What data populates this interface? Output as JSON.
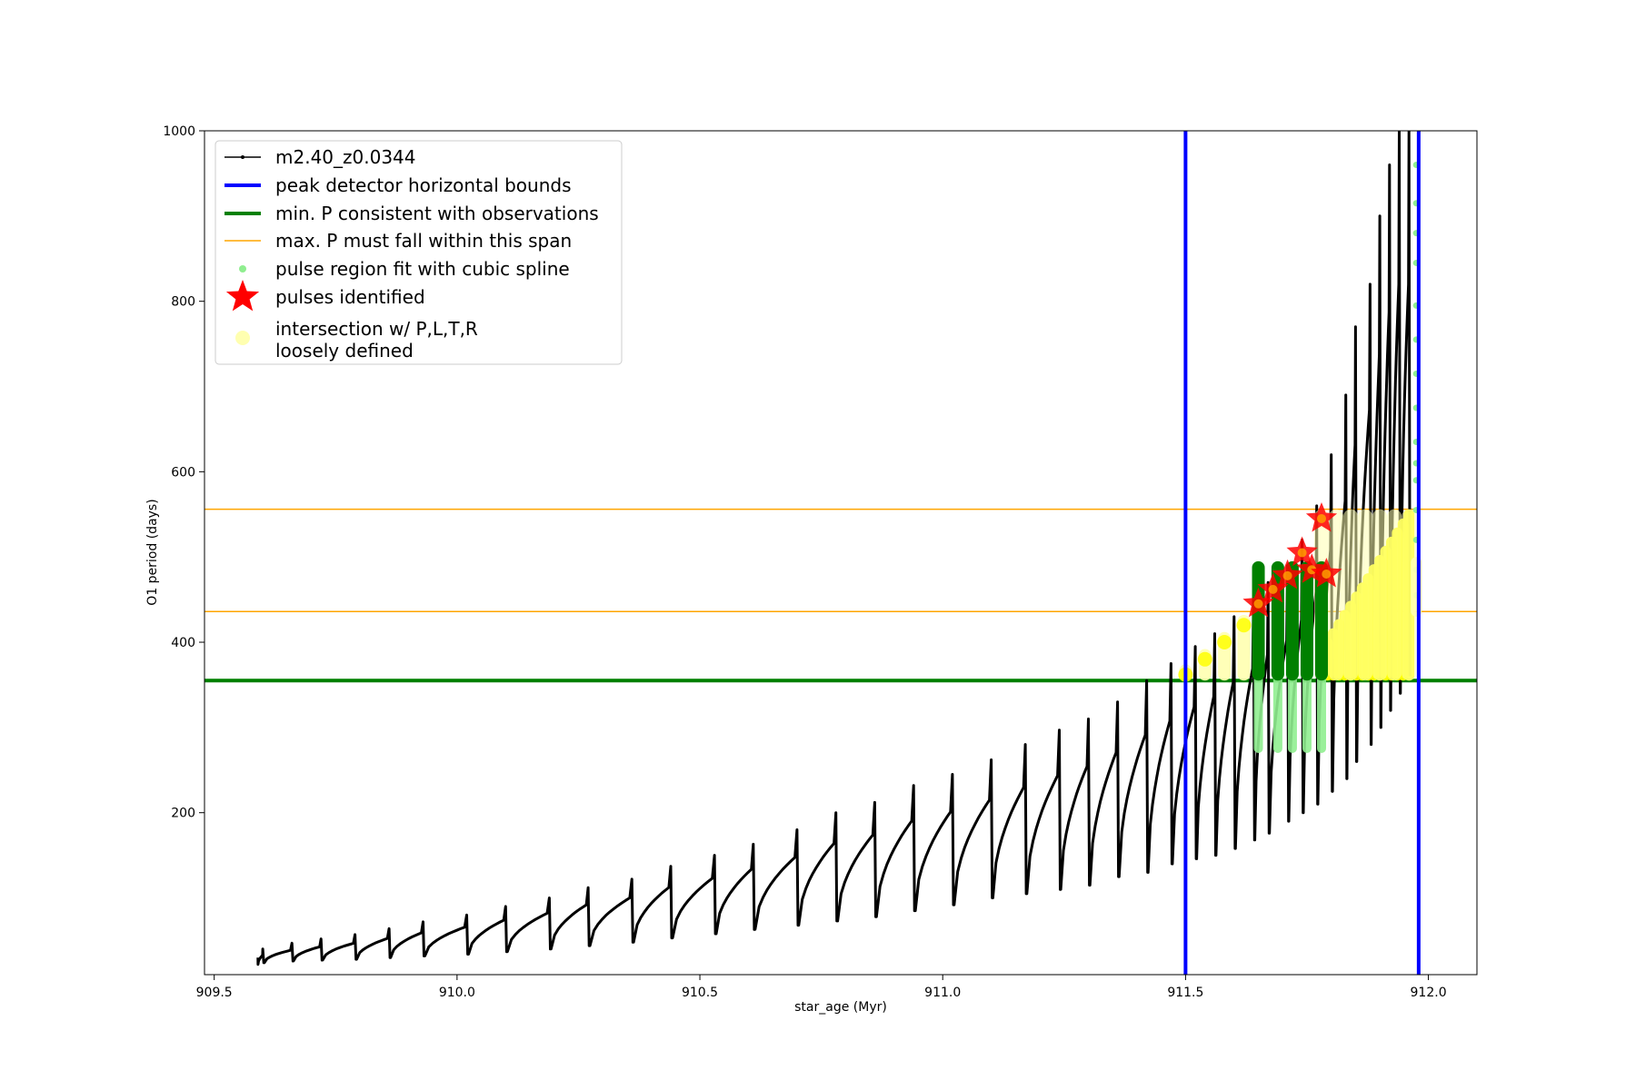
{
  "chart_data": {
    "type": "line",
    "title": "",
    "xlabel": "star_age (Myr)",
    "ylabel": "O1 period (days)",
    "xlim": [
      909.48,
      912.1
    ],
    "ylim": [
      10,
      1000
    ],
    "grid": false,
    "legend_placement": "top-left",
    "x_ticks": [
      909.5,
      910.0,
      910.5,
      911.0,
      911.5,
      912.0
    ],
    "x_tick_labels": [
      "909.5",
      "910.0",
      "910.5",
      "911.0",
      "911.5",
      "912.0"
    ],
    "y_ticks": [
      200,
      400,
      600,
      800,
      1000
    ],
    "y_tick_labels": [
      "200",
      "400",
      "600",
      "800",
      "1000"
    ],
    "colors": {
      "track": "#000000",
      "bounds": "#0000ff",
      "min_p": "#008000",
      "max_p": "#ffa500",
      "spline": "#90ee90",
      "pulses": "#ff0000",
      "intersection": "#ffff00",
      "intersection_loose": "#ffffb0",
      "pulse_segments": "#008000"
    },
    "legend": [
      {
        "label": "m2.40_z0.0344",
        "kind": "line-dot"
      },
      {
        "label": "peak detector horizontal bounds",
        "kind": "thick-blue"
      },
      {
        "label": "min. P consistent with observations",
        "kind": "thick-green"
      },
      {
        "label": "max. P must fall within this span",
        "kind": "thin-orange"
      },
      {
        "label": "pulse region fit with cubic spline",
        "kind": "green-dot"
      },
      {
        "label": "pulses identified",
        "kind": "red-star"
      },
      {
        "label": "intersection w/ P,L,T,R\nloosely defined",
        "kind": "yellow-circle"
      }
    ],
    "series": [
      {
        "name": "m2.40_z0.0344",
        "pulse_cycles": {
          "peak_ages": [
            909.6,
            909.66,
            909.72,
            909.79,
            909.86,
            909.93,
            910.02,
            910.1,
            910.19,
            910.27,
            910.36,
            910.44,
            910.53,
            910.61,
            910.7,
            910.78,
            910.86,
            910.94,
            911.02,
            911.1,
            911.17,
            911.24,
            911.3,
            911.36,
            911.42,
            911.47,
            911.52,
            911.56,
            911.6,
            911.64,
            911.67,
            911.71,
            911.74,
            911.77,
            911.8,
            911.83,
            911.85,
            911.88,
            911.9,
            911.92,
            911.94,
            911.96
          ],
          "peak_periods": [
            40,
            47,
            52,
            57,
            64,
            72,
            80,
            90,
            100,
            112,
            122,
            137,
            150,
            163,
            180,
            200,
            212,
            232,
            245,
            262,
            280,
            297,
            310,
            330,
            355,
            375,
            395,
            410,
            430,
            450,
            470,
            490,
            520,
            560,
            620,
            690,
            770,
            820,
            900,
            960,
            1000,
            1000
          ],
          "base_periods": [
            22,
            24,
            26,
            27,
            28,
            30,
            32,
            34,
            37,
            40,
            44,
            48,
            53,
            58,
            63,
            68,
            73,
            78,
            85,
            92,
            100,
            105,
            110,
            115,
            125,
            130,
            140,
            146,
            150,
            158,
            168,
            176,
            190,
            200,
            210,
            225,
            240,
            260,
            280,
            300,
            320,
            340
          ]
        }
      }
    ],
    "peak_detector_bounds": [
      911.5,
      911.98
    ],
    "min_p": 355,
    "max_p_span": [
      436,
      556
    ],
    "pulses_identified": [
      {
        "x": 911.65,
        "y": 445
      },
      {
        "x": 911.68,
        "y": 462
      },
      {
        "x": 911.71,
        "y": 478
      },
      {
        "x": 911.74,
        "y": 505
      },
      {
        "x": 911.76,
        "y": 485
      },
      {
        "x": 911.78,
        "y": 545
      },
      {
        "x": 911.79,
        "y": 480
      }
    ],
    "pulse_segments_green": [
      {
        "x": 911.65,
        "y_low": 355,
        "y_high": 495
      },
      {
        "x": 911.69,
        "y_low": 355,
        "y_high": 495
      },
      {
        "x": 911.72,
        "y_low": 355,
        "y_high": 495
      },
      {
        "x": 911.75,
        "y_low": 355,
        "y_high": 495
      },
      {
        "x": 911.78,
        "y_low": 355,
        "y_high": 495
      }
    ],
    "loose_intersection_points": [
      {
        "x": 911.5,
        "y": 362
      },
      {
        "x": 911.54,
        "y": 380
      },
      {
        "x": 911.58,
        "y": 400
      },
      {
        "x": 911.62,
        "y": 420
      }
    ],
    "intersection_region": {
      "x_range": [
        911.78,
        911.96
      ],
      "y_range": [
        355,
        556
      ]
    },
    "spline_points_x": 911.975,
    "spline_points_y": [
      960,
      915,
      880,
      845,
      795,
      755,
      715,
      675,
      635,
      610,
      590,
      555,
      520,
      485,
      455
    ]
  }
}
